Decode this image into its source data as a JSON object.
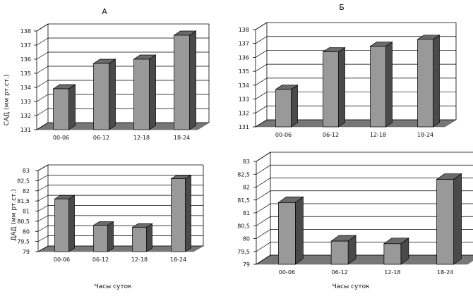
{
  "panel_titles": {
    "a": "А",
    "b": "Б"
  },
  "axis_labels": {
    "sbp": "САД (мм рт.ст.)",
    "dbp": "ДАД (мм рт.ст.)",
    "x_left": "Часы суток",
    "x_right": "Часы суток"
  },
  "colors": {
    "bar_front": "#999999",
    "bar_top": "#6a6a6a",
    "bar_side": "#4a4a4a",
    "floor": "#777777",
    "grid": "#000000"
  },
  "chart_data": [
    {
      "id": "sbp-a",
      "type": "bar",
      "title": "А",
      "ylabel": "САД (мм рт.ст.)",
      "xlabel": "",
      "categories": [
        "00-06",
        "06-12",
        "12-18",
        "18-24"
      ],
      "values": [
        133.9,
        135.7,
        136.0,
        137.7
      ],
      "ylim": [
        131,
        138
      ],
      "yticks": [
        "131",
        "132",
        "133",
        "134",
        "135",
        "136",
        "137",
        "138"
      ],
      "grid": true
    },
    {
      "id": "sbp-b",
      "type": "bar",
      "title": "Б",
      "ylabel": "",
      "xlabel": "",
      "categories": [
        "00-06",
        "06-12",
        "12-18",
        "18-24"
      ],
      "values": [
        133.7,
        136.4,
        136.8,
        137.3
      ],
      "ylim": [
        131,
        138
      ],
      "yticks": [
        "131",
        "132",
        "133",
        "134",
        "135",
        "136",
        "137",
        "138"
      ],
      "grid": true
    },
    {
      "id": "dbp-a",
      "type": "bar",
      "title": "",
      "ylabel": "ДАД (мм рт.ст.)",
      "xlabel": "Часы суток",
      "categories": [
        "00-06",
        "06-12",
        "12-18",
        "18-24"
      ],
      "values": [
        81.6,
        80.3,
        80.2,
        82.6
      ],
      "ylim": [
        79,
        83
      ],
      "yticks": [
        "79",
        "79,5",
        "80",
        "80,5",
        "81",
        "81,5",
        "82",
        "82,5",
        "83"
      ],
      "grid": true
    },
    {
      "id": "dbp-b",
      "type": "bar",
      "title": "",
      "ylabel": "",
      "xlabel": "Часы суток",
      "categories": [
        "00-06",
        "06-12",
        "12-18",
        "18-24"
      ],
      "values": [
        81.4,
        79.9,
        79.8,
        82.3
      ],
      "ylim": [
        79,
        83
      ],
      "yticks": [
        "79",
        "79,5",
        "80",
        "80,5",
        "81",
        "81,5",
        "82",
        "82,5",
        "83"
      ],
      "grid": true
    }
  ]
}
